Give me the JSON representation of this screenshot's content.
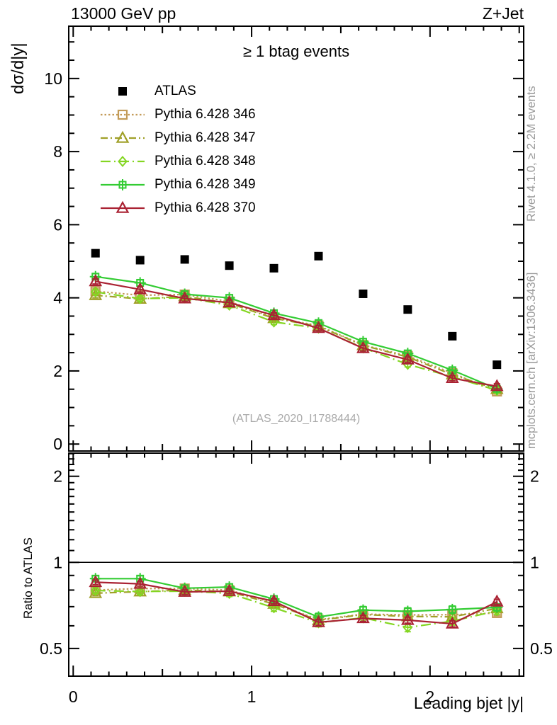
{
  "header": {
    "collision": "13000 GeV pp",
    "process": "Z+Jet"
  },
  "main_panel": {
    "title": "≥ 1 btag events",
    "ylabel": "dσ/d|y|",
    "watermark": "(ATLAS_2020_I1788444)"
  },
  "ratio_panel": {
    "ylabel": "Ratio to ATLAS"
  },
  "xaxis": {
    "label": "Leading bjet |y|"
  },
  "side_notes": {
    "rivet": "Rivet 4.1.0, ≥ 2.2M events",
    "mcplots": "mcplots.cern.ch [arXiv:1306.3436]"
  },
  "chart_data": {
    "type": "line",
    "title": "≥ 1 btag events",
    "xlabel": "Leading bjet |y|",
    "x": [
      0.125,
      0.375,
      0.625,
      0.875,
      1.125,
      1.375,
      1.625,
      1.875,
      2.125,
      2.375
    ],
    "xlim": [
      -0.025,
      2.525
    ],
    "xticks_major": [
      0,
      1,
      2
    ],
    "xtick_minor_step": 0.1,
    "main": {
      "ylabel": "dσ/d|y|",
      "ylim": [
        -0.19,
        11.43
      ],
      "yticks_major": [
        0,
        2,
        4,
        6,
        8,
        10
      ],
      "ytick_minor_step": 0.5
    },
    "ratio": {
      "ylabel": "Ratio to ATLAS",
      "scale": "log",
      "ylim": [
        0.4,
        2.41
      ],
      "yticks_major": [
        0.5,
        1,
        2
      ],
      "ytick_minors": [
        0.4,
        0.6,
        0.7,
        0.8,
        0.9,
        1.1,
        1.2,
        1.3,
        1.4,
        1.5,
        1.6,
        1.7,
        1.8,
        1.9,
        2.1,
        2.2,
        2.3,
        2.4
      ],
      "unity_line": 1
    },
    "series": [
      {
        "name": "ATLAS",
        "color": "#000000",
        "marker": "filled-square",
        "line": "none",
        "values": [
          5.22,
          5.03,
          5.05,
          4.88,
          4.81,
          5.14,
          4.11,
          3.68,
          2.95,
          2.17
        ],
        "err": 0.05,
        "in_ratio": false
      },
      {
        "name": "Pythia 6.428 346",
        "color": "#C39B58",
        "marker": "open-square",
        "line": "dotted",
        "values": [
          4.18,
          4.07,
          4.09,
          3.9,
          3.46,
          3.24,
          2.71,
          2.41,
          1.94,
          1.44
        ],
        "ratio": [
          0.8,
          0.81,
          0.81,
          0.8,
          0.72,
          0.63,
          0.659,
          0.655,
          0.656,
          0.665
        ],
        "err": 0.07,
        "err_ratio": 0.015,
        "in_ratio": true
      },
      {
        "name": "Pythia 6.428 347",
        "color": "#A0A028",
        "marker": "open-triangle",
        "line": "dashdot",
        "values": [
          4.07,
          3.97,
          4.04,
          3.85,
          3.44,
          3.22,
          2.7,
          2.38,
          1.9,
          1.5
        ],
        "ratio": [
          0.78,
          0.79,
          0.8,
          0.79,
          0.715,
          0.627,
          0.657,
          0.647,
          0.645,
          0.69
        ],
        "err": 0.07,
        "err_ratio": 0.015,
        "in_ratio": true
      },
      {
        "name": "Pythia 6.428 348",
        "color": "#84D622",
        "marker": "open-diamond",
        "line": "dashdot2",
        "values": [
          4.16,
          3.98,
          4.0,
          3.8,
          3.34,
          3.17,
          2.63,
          2.18,
          1.84,
          1.47
        ],
        "ratio": [
          0.797,
          0.791,
          0.793,
          0.779,
          0.694,
          0.615,
          0.64,
          0.592,
          0.623,
          0.677
        ],
        "err": 0.07,
        "err_ratio": 0.02,
        "in_ratio": true
      },
      {
        "name": "Pythia 6.428 349",
        "color": "#33CC33",
        "marker": "boxed-plus",
        "line": "solid",
        "values": [
          4.58,
          4.41,
          4.1,
          4.0,
          3.58,
          3.31,
          2.8,
          2.48,
          2.02,
          1.51
        ],
        "ratio": [
          0.877,
          0.877,
          0.812,
          0.82,
          0.744,
          0.644,
          0.681,
          0.674,
          0.684,
          0.696
        ],
        "err": 0.08,
        "err_ratio": 0.02,
        "in_ratio": true
      },
      {
        "name": "Pythia 6.428 370",
        "color": "#AA2233",
        "marker": "open-triangle",
        "line": "solid",
        "values": [
          4.45,
          4.23,
          3.98,
          3.87,
          3.52,
          3.17,
          2.62,
          2.31,
          1.8,
          1.58
        ],
        "ratio": [
          0.852,
          0.841,
          0.788,
          0.793,
          0.731,
          0.617,
          0.637,
          0.628,
          0.61,
          0.728
        ],
        "err": 0.07,
        "err_ratio": 0.015,
        "in_ratio": true
      }
    ]
  }
}
